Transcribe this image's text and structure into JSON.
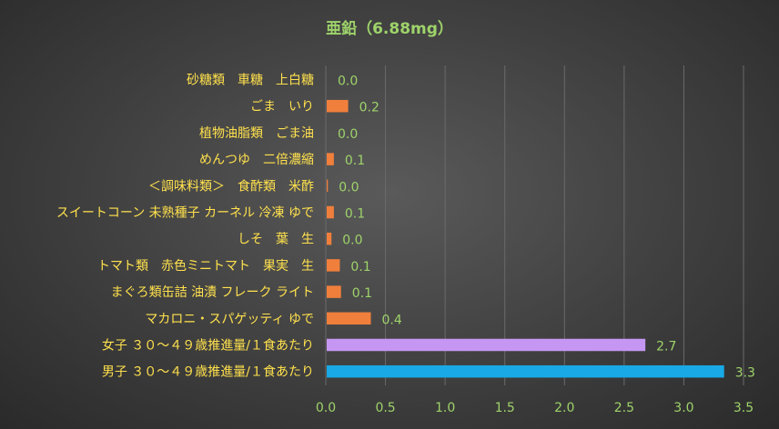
{
  "chart_data": {
    "type": "bar",
    "orientation": "horizontal",
    "title": "亜鉛（6.88mg）",
    "xlabel": "",
    "ylabel": "",
    "xlim": [
      0,
      3.5
    ],
    "x_ticks": [
      "0.0",
      "0.5",
      "1.0",
      "1.5",
      "2.0",
      "2.5",
      "3.0",
      "3.5"
    ],
    "grid": "vertical",
    "legend": "none",
    "categories": [
      "砂糖類　車糖　上白糖",
      "ごま　いり",
      "植物油脂類　ごま油",
      "めんつゆ　二倍濃縮",
      "＜調味料類＞　食酢類　米酢",
      "スイートコーン 未熟種子 カーネル 冷凍 ゆで",
      "しそ　葉　生",
      "トマト類　赤色ミニトマト　果実　生",
      "まぐろ類缶詰 油漬 フレーク ライト",
      "マカロニ・スパゲッティ ゆで",
      "女子 ３０～４９歳推進量/１食あたり",
      "男子 ３０～４９歳推進量/１食あたり"
    ],
    "values": [
      0.0,
      0.18,
      0.0,
      0.06,
      0.01,
      0.06,
      0.04,
      0.11,
      0.12,
      0.37,
      2.67,
      3.33
    ],
    "value_labels": [
      "0.0",
      "0.2",
      "0.0",
      "0.1",
      "0.0",
      "0.1",
      "0.0",
      "0.1",
      "0.1",
      "0.4",
      "2.7",
      "3.3"
    ],
    "colors": [
      "#f07f3c",
      "#f07f3c",
      "#f07f3c",
      "#f07f3c",
      "#f07f3c",
      "#f07f3c",
      "#f07f3c",
      "#f07f3c",
      "#f07f3c",
      "#f07f3c",
      "#c597f2",
      "#18a9e6"
    ],
    "label_color": "#ffe14d",
    "value_label_color": "#9ed36a",
    "title_color": "#9ed36a",
    "tick_color": "#9ed36a",
    "grid_color": "#6a6a6a"
  }
}
